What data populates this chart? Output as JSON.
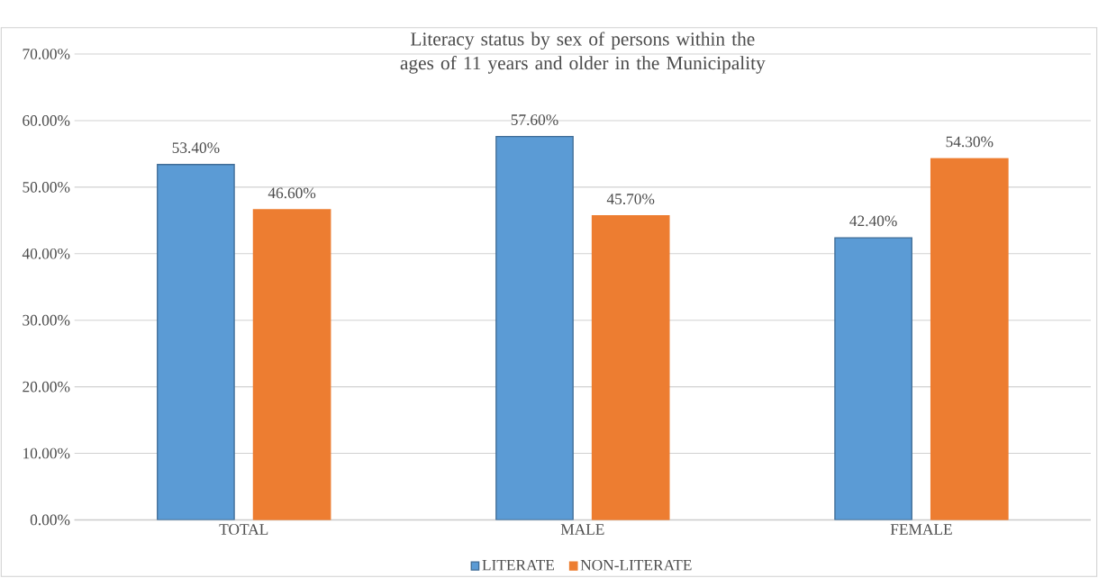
{
  "chart_data": {
    "type": "bar",
    "title": "Literacy status by sex of persons within the ages of 11 years and older in the Municipality",
    "categories": [
      "TOTAL",
      "MALE",
      "FEMALE"
    ],
    "series": [
      {
        "name": "LITERATE",
        "color": "#5b9bd5",
        "values": [
          53.4,
          57.6,
          42.4
        ],
        "value_labels": [
          "53.40%",
          "57.60%",
          "42.40%"
        ]
      },
      {
        "name": "NON-LITERATE",
        "color": "#ed7d31",
        "values": [
          46.6,
          45.7,
          54.3
        ],
        "value_labels": [
          "46.60%",
          "45.70%",
          "54.30%"
        ]
      }
    ],
    "ylim": [
      0,
      70
    ],
    "yticks": [
      {
        "value": 0,
        "label": "0.00%"
      },
      {
        "value": 10,
        "label": "10.00%"
      },
      {
        "value": 20,
        "label": "20.00%"
      },
      {
        "value": 30,
        "label": "30.00%"
      },
      {
        "value": 40,
        "label": "40.00%"
      },
      {
        "value": 50,
        "label": "50.00%"
      },
      {
        "value": 60,
        "label": "60.00%"
      },
      {
        "value": 70,
        "label": "70.00%"
      }
    ],
    "grid": "y",
    "legend": "bottom"
  }
}
